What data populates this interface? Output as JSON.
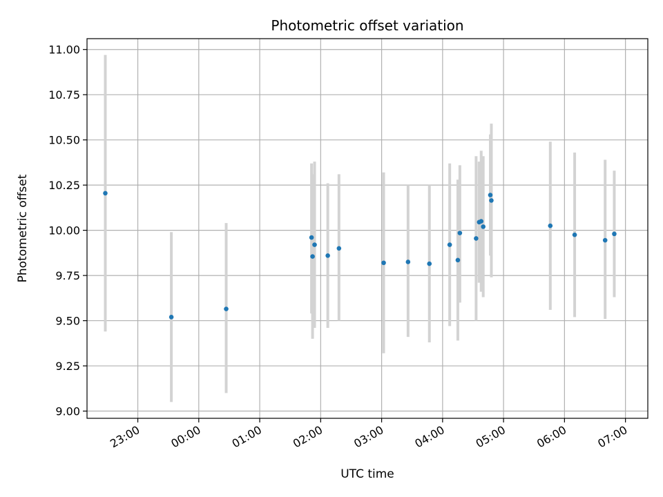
{
  "chart_data": {
    "type": "scatter",
    "title": "Photometric offset variation",
    "xlabel": "UTC time",
    "ylabel": "Photometric offset",
    "x_ticks": [
      "23:00",
      "00:00",
      "01:00",
      "02:00",
      "03:00",
      "04:00",
      "05:00",
      "06:00",
      "07:00"
    ],
    "y_ticks": [
      "9.00",
      "9.25",
      "9.50",
      "9.75",
      "10.00",
      "10.25",
      "10.50",
      "10.75",
      "11.00"
    ],
    "xlim": [
      "22:10",
      "07:22"
    ],
    "ylim": [
      8.96,
      11.06
    ],
    "grid": true,
    "point_color": "#1f77b4",
    "errorbar_color": "#d3d3d3",
    "points": [
      {
        "t": "22:28",
        "y": 10.205,
        "lo": 9.44,
        "hi": 10.97
      },
      {
        "t": "23:33",
        "y": 9.52,
        "lo": 9.05,
        "hi": 9.99
      },
      {
        "t": "00:27",
        "y": 9.565,
        "lo": 9.1,
        "hi": 10.04
      },
      {
        "t": "01:51",
        "y": 9.96,
        "lo": 9.54,
        "hi": 10.37
      },
      {
        "t": "01:52",
        "y": 9.855,
        "lo": 9.4,
        "hi": 10.31
      },
      {
        "t": "01:54",
        "y": 9.92,
        "lo": 9.46,
        "hi": 10.38
      },
      {
        "t": "02:07",
        "y": 9.86,
        "lo": 9.46,
        "hi": 10.26
      },
      {
        "t": "02:18",
        "y": 9.9,
        "lo": 9.5,
        "hi": 10.31
      },
      {
        "t": "03:02",
        "y": 9.82,
        "lo": 9.32,
        "hi": 10.32
      },
      {
        "t": "03:26",
        "y": 9.825,
        "lo": 9.41,
        "hi": 10.25
      },
      {
        "t": "03:47",
        "y": 9.815,
        "lo": 9.38,
        "hi": 10.25
      },
      {
        "t": "04:07",
        "y": 9.92,
        "lo": 9.47,
        "hi": 10.37
      },
      {
        "t": "04:15",
        "y": 9.835,
        "lo": 9.39,
        "hi": 10.28
      },
      {
        "t": "04:17",
        "y": 9.985,
        "lo": 9.6,
        "hi": 10.36
      },
      {
        "t": "04:33",
        "y": 9.955,
        "lo": 9.5,
        "hi": 10.41
      },
      {
        "t": "04:36",
        "y": 10.045,
        "lo": 9.71,
        "hi": 10.38
      },
      {
        "t": "04:38",
        "y": 10.05,
        "lo": 9.66,
        "hi": 10.44
      },
      {
        "t": "04:40",
        "y": 10.02,
        "lo": 9.63,
        "hi": 10.41
      },
      {
        "t": "04:47",
        "y": 10.195,
        "lo": 9.86,
        "hi": 10.53
      },
      {
        "t": "04:48",
        "y": 10.165,
        "lo": 9.74,
        "hi": 10.59
      },
      {
        "t": "05:46",
        "y": 10.025,
        "lo": 9.56,
        "hi": 10.49
      },
      {
        "t": "06:10",
        "y": 9.975,
        "lo": 9.52,
        "hi": 10.43
      },
      {
        "t": "06:40",
        "y": 9.945,
        "lo": 9.51,
        "hi": 10.39
      },
      {
        "t": "06:49",
        "y": 9.98,
        "lo": 9.63,
        "hi": 10.33
      }
    ]
  }
}
